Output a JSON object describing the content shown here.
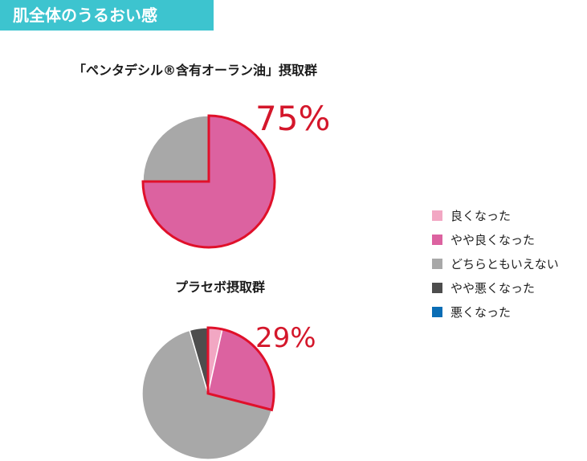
{
  "header": {
    "title": "肌全体のうるおい感"
  },
  "colors": {
    "good": "#f2a7c3",
    "slightly_good": "#dc62a0",
    "neutral": "#a8a8a8",
    "slightly_bad": "#4d4d4d",
    "bad": "#0a6db5",
    "highlight_stroke": "#e0102a"
  },
  "legend": {
    "items": [
      {
        "label": "良くなった",
        "color": "#f2a7c3"
      },
      {
        "label": " やや良くなった",
        "color": "#dc62a0"
      },
      {
        "label": "どちらともいえない",
        "color": "#a8a8a8"
      },
      {
        "label": " やや悪くなった",
        "color": "#4d4d4d"
      },
      {
        "label": "悪くなった",
        "color": "#0a6db5"
      }
    ]
  },
  "chart_data": [
    {
      "type": "pie",
      "title": "「ペンタデシル®含有オーラン油」摂取群",
      "callout": "75%",
      "slices": [
        {
          "name": "良くなった",
          "value": 0
        },
        {
          "name": " やや良くなった",
          "value": 75
        },
        {
          "name": "どちらともいえない",
          "value": 25
        },
        {
          "name": " やや悪くなった",
          "value": 0
        },
        {
          "name": "悪くなった",
          "value": 0
        }
      ]
    },
    {
      "type": "pie",
      "title": "プラセボ摂取群",
      "callout": "29%",
      "slices": [
        {
          "name": "良くなった",
          "value": 3.5
        },
        {
          "name": " やや良くなった",
          "value": 25.5
        },
        {
          "name": "どちらともいえない",
          "value": 66.5
        },
        {
          "name": " やや悪くなった",
          "value": 4.5
        },
        {
          "name": "悪くなった",
          "value": 0
        }
      ]
    }
  ]
}
